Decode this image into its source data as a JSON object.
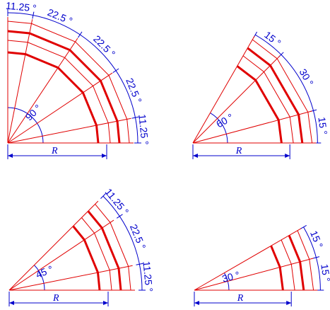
{
  "diagrams": [
    {
      "id": "d90",
      "center_label": "90 °",
      "radius_label": "R",
      "segment_labels": [
        "11.25 °",
        "22.5 °",
        "22.5 °",
        "22.5 °",
        "11.25 °"
      ]
    },
    {
      "id": "d60",
      "center_label": "60 °",
      "radius_label": "R",
      "segment_labels": [
        "15 °",
        "30 °",
        "15 °"
      ]
    },
    {
      "id": "d45",
      "center_label": "45 °",
      "radius_label": "R",
      "segment_labels": [
        "11.25 °",
        "22.5 °",
        "11.25 °"
      ]
    },
    {
      "id": "d30",
      "center_label": "30 °",
      "radius_label": "R",
      "segment_labels": [
        "15 °",
        "15 °"
      ]
    }
  ],
  "colors": {
    "red": "#e00000",
    "blue": "#0000cc"
  }
}
